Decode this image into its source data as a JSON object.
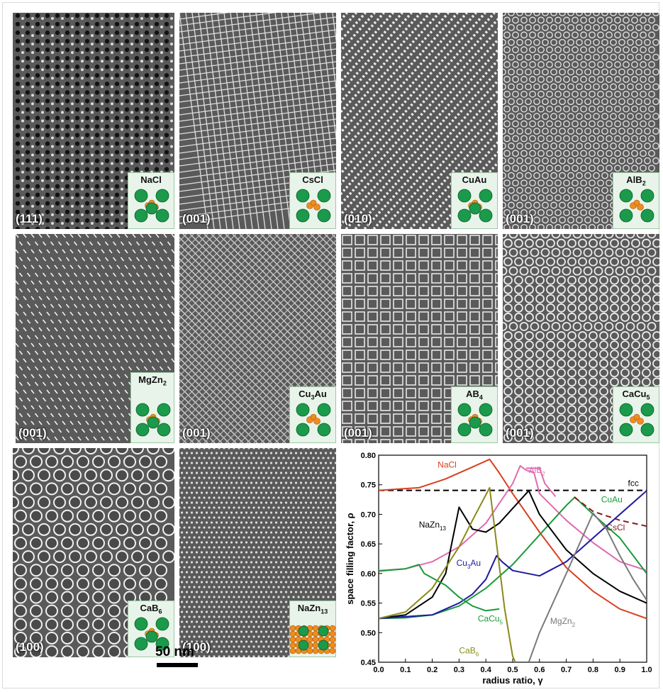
{
  "scale_bar": "50 nm",
  "panels": [
    {
      "structure": "NaCl",
      "orientation": "(111)",
      "texture": "dots"
    },
    {
      "structure": "CsCl",
      "orientation": "(001)",
      "texture": "grid"
    },
    {
      "structure": "CuAu",
      "orientation": "(010)",
      "texture": "stripes"
    },
    {
      "structure": "AlB",
      "sub": "2",
      "orientation": "(001)",
      "texture": "hex"
    },
    {
      "structure": "MgZn",
      "sub": "2",
      "orientation": "(001)",
      "texture": "dashes"
    },
    {
      "structure": "Cu",
      "sub": "3",
      "tail": "Au",
      "orientation": "(001)",
      "texture": "diag"
    },
    {
      "structure": "AB",
      "sub": "4",
      "orientation": "(001)",
      "texture": "squares"
    },
    {
      "structure": "CaCu",
      "sub": "5",
      "orientation": "(001)",
      "texture": "rings"
    },
    {
      "structure": "CaB",
      "sub": "6",
      "orientation": "(100)",
      "texture": "circles"
    },
    {
      "structure": "NaZn",
      "sub": "13",
      "orientation": "(100)",
      "texture": "fine"
    }
  ],
  "colors": {
    "large_sphere": "#1a9a4a",
    "small_sphere": "#f08c1e",
    "inset_bg": "#e8f4ea"
  },
  "chart_data": {
    "type": "line",
    "title": "",
    "xlabel": "radius ratio, γ",
    "ylabel": "space filling factor, ρ",
    "xlim": [
      0.0,
      1.0
    ],
    "ylim": [
      0.45,
      0.8
    ],
    "xticks": [
      "0.0",
      "0.1",
      "0.2",
      "0.3",
      "0.4",
      "0.5",
      "0.6",
      "0.7",
      "0.8",
      "0.9",
      "1.0"
    ],
    "yticks": [
      "0.45",
      "0.50",
      "0.55",
      "0.60",
      "0.65",
      "0.70",
      "0.75",
      "0.80"
    ],
    "series": [
      {
        "name": "fcc",
        "color": "#000000",
        "dashed": true,
        "points": [
          [
            0,
            0.7405
          ],
          [
            1,
            0.7405
          ]
        ]
      },
      {
        "name": "NaCl",
        "color": "#d8401e",
        "points": [
          [
            0,
            0.7405
          ],
          [
            0.15,
            0.745
          ],
          [
            0.25,
            0.76
          ],
          [
            0.35,
            0.78
          ],
          [
            0.414,
            0.793
          ],
          [
            0.45,
            0.77
          ],
          [
            0.5,
            0.735
          ],
          [
            0.6,
            0.67
          ],
          [
            0.7,
            0.61
          ],
          [
            0.8,
            0.57
          ],
          [
            0.9,
            0.54
          ],
          [
            1,
            0.524
          ]
        ]
      },
      {
        "name": "AlB",
        "sub": "2",
        "color": "#e06ab0",
        "points": [
          [
            0,
            0.605
          ],
          [
            0.1,
            0.608
          ],
          [
            0.2,
            0.62
          ],
          [
            0.3,
            0.645
          ],
          [
            0.4,
            0.685
          ],
          [
            0.5,
            0.752
          ],
          [
            0.528,
            0.782
          ],
          [
            0.55,
            0.775
          ],
          [
            0.58,
            0.77
          ],
          [
            0.6,
            0.735
          ],
          [
            0.7,
            0.69
          ],
          [
            0.8,
            0.652
          ],
          [
            0.9,
            0.62
          ],
          [
            1,
            0.605
          ]
        ]
      },
      {
        "name": "AlB2-alt",
        "color": "#e06ab0",
        "points": [
          [
            0.55,
            0.778
          ],
          [
            0.6,
            0.778
          ],
          [
            0.62,
            0.752
          ],
          [
            0.66,
            0.73
          ]
        ]
      },
      {
        "name": "CuAu",
        "color": "#1a9a3a",
        "points": [
          [
            0,
            0.524
          ],
          [
            0.1,
            0.525
          ],
          [
            0.2,
            0.53
          ],
          [
            0.3,
            0.545
          ],
          [
            0.4,
            0.575
          ],
          [
            0.5,
            0.615
          ],
          [
            0.6,
            0.665
          ],
          [
            0.7,
            0.715
          ],
          [
            0.732,
            0.729
          ],
          [
            0.8,
            0.7
          ],
          [
            0.9,
            0.66
          ],
          [
            1,
            0.6
          ]
        ]
      },
      {
        "name": "CsCl",
        "color": "#8b1a1a",
        "dashed": true,
        "points": [
          [
            0.73,
            0.729
          ],
          [
            0.8,
            0.705
          ],
          [
            0.9,
            0.69
          ],
          [
            1,
            0.68
          ]
        ]
      },
      {
        "name": "NaZn",
        "sub": "13",
        "color": "#000000",
        "points": [
          [
            0,
            0.524
          ],
          [
            0.1,
            0.53
          ],
          [
            0.2,
            0.56
          ],
          [
            0.25,
            0.6
          ],
          [
            0.3,
            0.712
          ],
          [
            0.35,
            0.675
          ],
          [
            0.4,
            0.67
          ],
          [
            0.45,
            0.685
          ],
          [
            0.5,
            0.71
          ],
          [
            0.56,
            0.74
          ],
          [
            0.6,
            0.7
          ],
          [
            0.7,
            0.64
          ],
          [
            0.8,
            0.6
          ],
          [
            0.9,
            0.57
          ],
          [
            1,
            0.55
          ]
        ]
      },
      {
        "name": "Cu",
        "sub": "3",
        "tail": "Au",
        "color": "#1f1aa0",
        "points": [
          [
            0,
            0.524
          ],
          [
            0.2,
            0.53
          ],
          [
            0.3,
            0.55
          ],
          [
            0.35,
            0.565
          ],
          [
            0.4,
            0.59
          ],
          [
            0.44,
            0.63
          ],
          [
            0.46,
            0.62
          ],
          [
            0.5,
            0.605
          ],
          [
            0.6,
            0.596
          ],
          [
            0.7,
            0.62
          ],
          [
            0.8,
            0.66
          ],
          [
            0.9,
            0.7
          ],
          [
            1,
            0.74
          ]
        ]
      },
      {
        "name": "CaCu",
        "sub": "5",
        "color": "#1a9a3a",
        "points": [
          [
            0,
            0.604
          ],
          [
            0.1,
            0.608
          ],
          [
            0.15,
            0.615
          ],
          [
            0.17,
            0.6
          ],
          [
            0.25,
            0.58
          ],
          [
            0.3,
            0.56
          ],
          [
            0.35,
            0.545
          ],
          [
            0.4,
            0.537
          ],
          [
            0.45,
            0.54
          ]
        ]
      },
      {
        "name": "CaB",
        "sub": "6",
        "color": "#8a8a1a",
        "points": [
          [
            0,
            0.524
          ],
          [
            0.1,
            0.535
          ],
          [
            0.2,
            0.575
          ],
          [
            0.3,
            0.645
          ],
          [
            0.35,
            0.69
          ],
          [
            0.414,
            0.745
          ],
          [
            0.44,
            0.65
          ],
          [
            0.47,
            0.54
          ],
          [
            0.5,
            0.46
          ],
          [
            0.51,
            0.45
          ]
        ]
      },
      {
        "name": "MgZn",
        "sub": "2",
        "color": "#7a7a7a",
        "points": [
          [
            0.56,
            0.45
          ],
          [
            0.6,
            0.5
          ],
          [
            0.7,
            0.6
          ],
          [
            0.8,
            0.702
          ],
          [
            0.85,
            0.675
          ],
          [
            0.9,
            0.63
          ],
          [
            0.95,
            0.59
          ],
          [
            1,
            0.555
          ]
        ]
      }
    ],
    "labels": [
      {
        "text": "NaCl",
        "x": 0.22,
        "y": 0.779,
        "color": "#d8401e"
      },
      {
        "text": "AlB",
        "sub": "2",
        "x": 0.56,
        "y": 0.77,
        "color": "#e06ab0"
      },
      {
        "text": "fcc",
        "x": 0.93,
        "y": 0.748,
        "color": "#000000"
      },
      {
        "text": "CuAu",
        "x": 0.83,
        "y": 0.72,
        "color": "#1a9a3a"
      },
      {
        "text": "CsCl",
        "x": 0.85,
        "y": 0.673,
        "color": "#8b1a1a"
      },
      {
        "text": "NaZn",
        "sub": "13",
        "x": 0.15,
        "y": 0.678,
        "color": "#000000"
      },
      {
        "text": "Cu",
        "sub": "3",
        "tail": "Au",
        "x": 0.29,
        "y": 0.613,
        "color": "#1f1aa0"
      },
      {
        "text": "CaCu",
        "sub": "5",
        "x": 0.37,
        "y": 0.519,
        "color": "#1a9a3a"
      },
      {
        "text": "MgZn",
        "sub": "2",
        "x": 0.64,
        "y": 0.515,
        "color": "#7a7a7a"
      },
      {
        "text": "CaB",
        "sub": "6",
        "x": 0.3,
        "y": 0.465,
        "color": "#8a8a1a"
      }
    ]
  }
}
